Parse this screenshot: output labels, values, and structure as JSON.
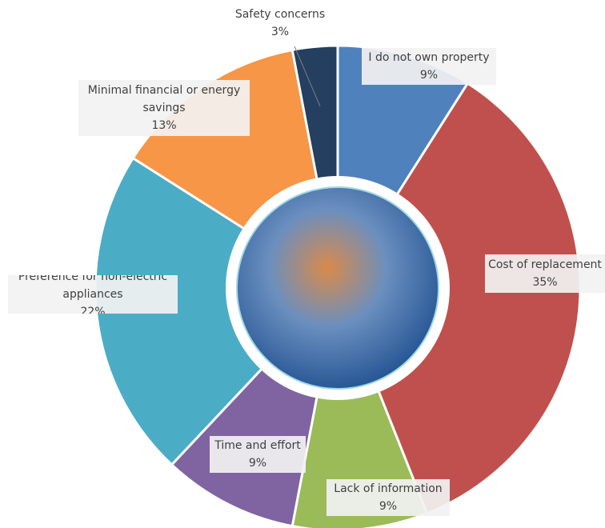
{
  "chart_data": {
    "type": "donut",
    "categories": [
      "I do not own property",
      "Cost of replacement",
      "Lack of information",
      "Time and effort",
      "Preference for non-electric appliances",
      "Minimal financial or energy savings",
      "Safety concerns"
    ],
    "values": [
      9,
      35,
      9,
      9,
      22,
      13,
      3
    ],
    "value_labels": [
      "9%",
      "35%",
      "9%",
      "9%",
      "22%",
      "13%",
      "3%"
    ],
    "colors": [
      "#4f81bd",
      "#c0504d",
      "#9bbb59",
      "#8064a2",
      "#4bacc6",
      "#f79646",
      "#243f60"
    ]
  }
}
